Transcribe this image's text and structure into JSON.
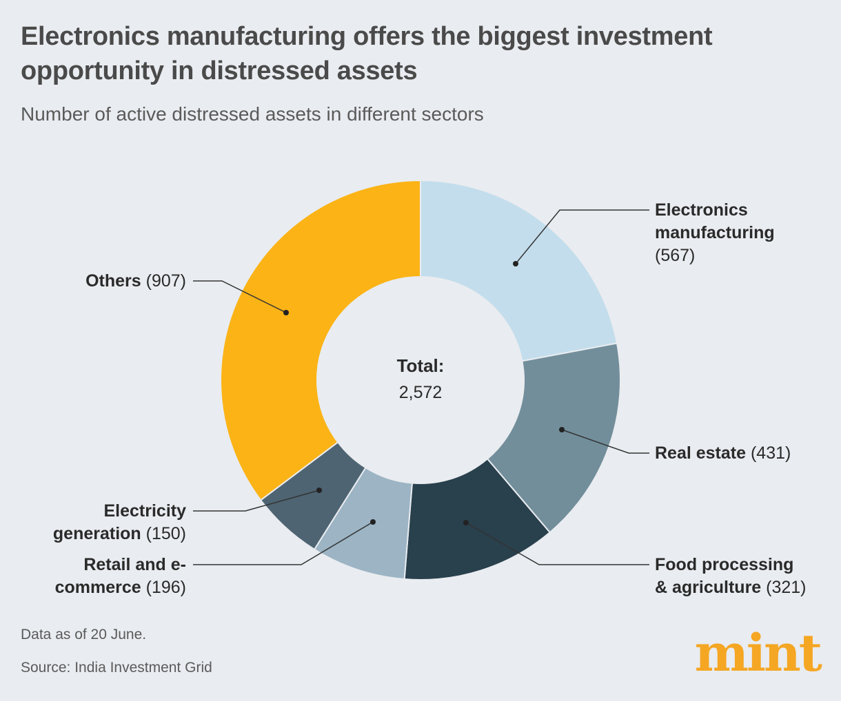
{
  "title": "Electronics manufacturing offers the biggest investment opportunity in distressed assets",
  "subtitle": "Number of active distressed assets in different sectors",
  "notes": {
    "data_as_of": "Data as of 20 June.",
    "source": "Source: India Investment Grid"
  },
  "logo": "mint",
  "colors": {
    "electronics": "#c3ddec",
    "real_estate": "#728e9b",
    "food": "#29404d",
    "retail": "#9cb4c4",
    "electricity": "#4e6472",
    "others": "#fbb316"
  },
  "chart_data": {
    "type": "pie",
    "subtype": "donut",
    "title": "Number of active distressed assets in different sectors",
    "center_label": "Total:",
    "center_value": "2,572",
    "slices": [
      {
        "name_lines": [
          "Electronics",
          "manufacturing"
        ],
        "value_text": "(567)",
        "value": 567,
        "color": "#c3ddec"
      },
      {
        "name_lines": [
          "Real estate"
        ],
        "value_text": "(431)",
        "value": 431,
        "color": "#728e9b"
      },
      {
        "name_lines": [
          "Food processing",
          "& agriculture"
        ],
        "value_text": "(321)",
        "value": 321,
        "color": "#29404d"
      },
      {
        "name_lines": [
          "Retail and e-",
          "commerce"
        ],
        "value_text": "(196)",
        "value": 196,
        "color": "#9cb4c4"
      },
      {
        "name_lines": [
          "Electricity",
          "generation"
        ],
        "value_text": "(150)",
        "value": 150,
        "color": "#4e6472"
      },
      {
        "name_lines": [
          "Others"
        ],
        "value_text": "(907)",
        "value": 907,
        "color": "#fbb316"
      }
    ]
  }
}
